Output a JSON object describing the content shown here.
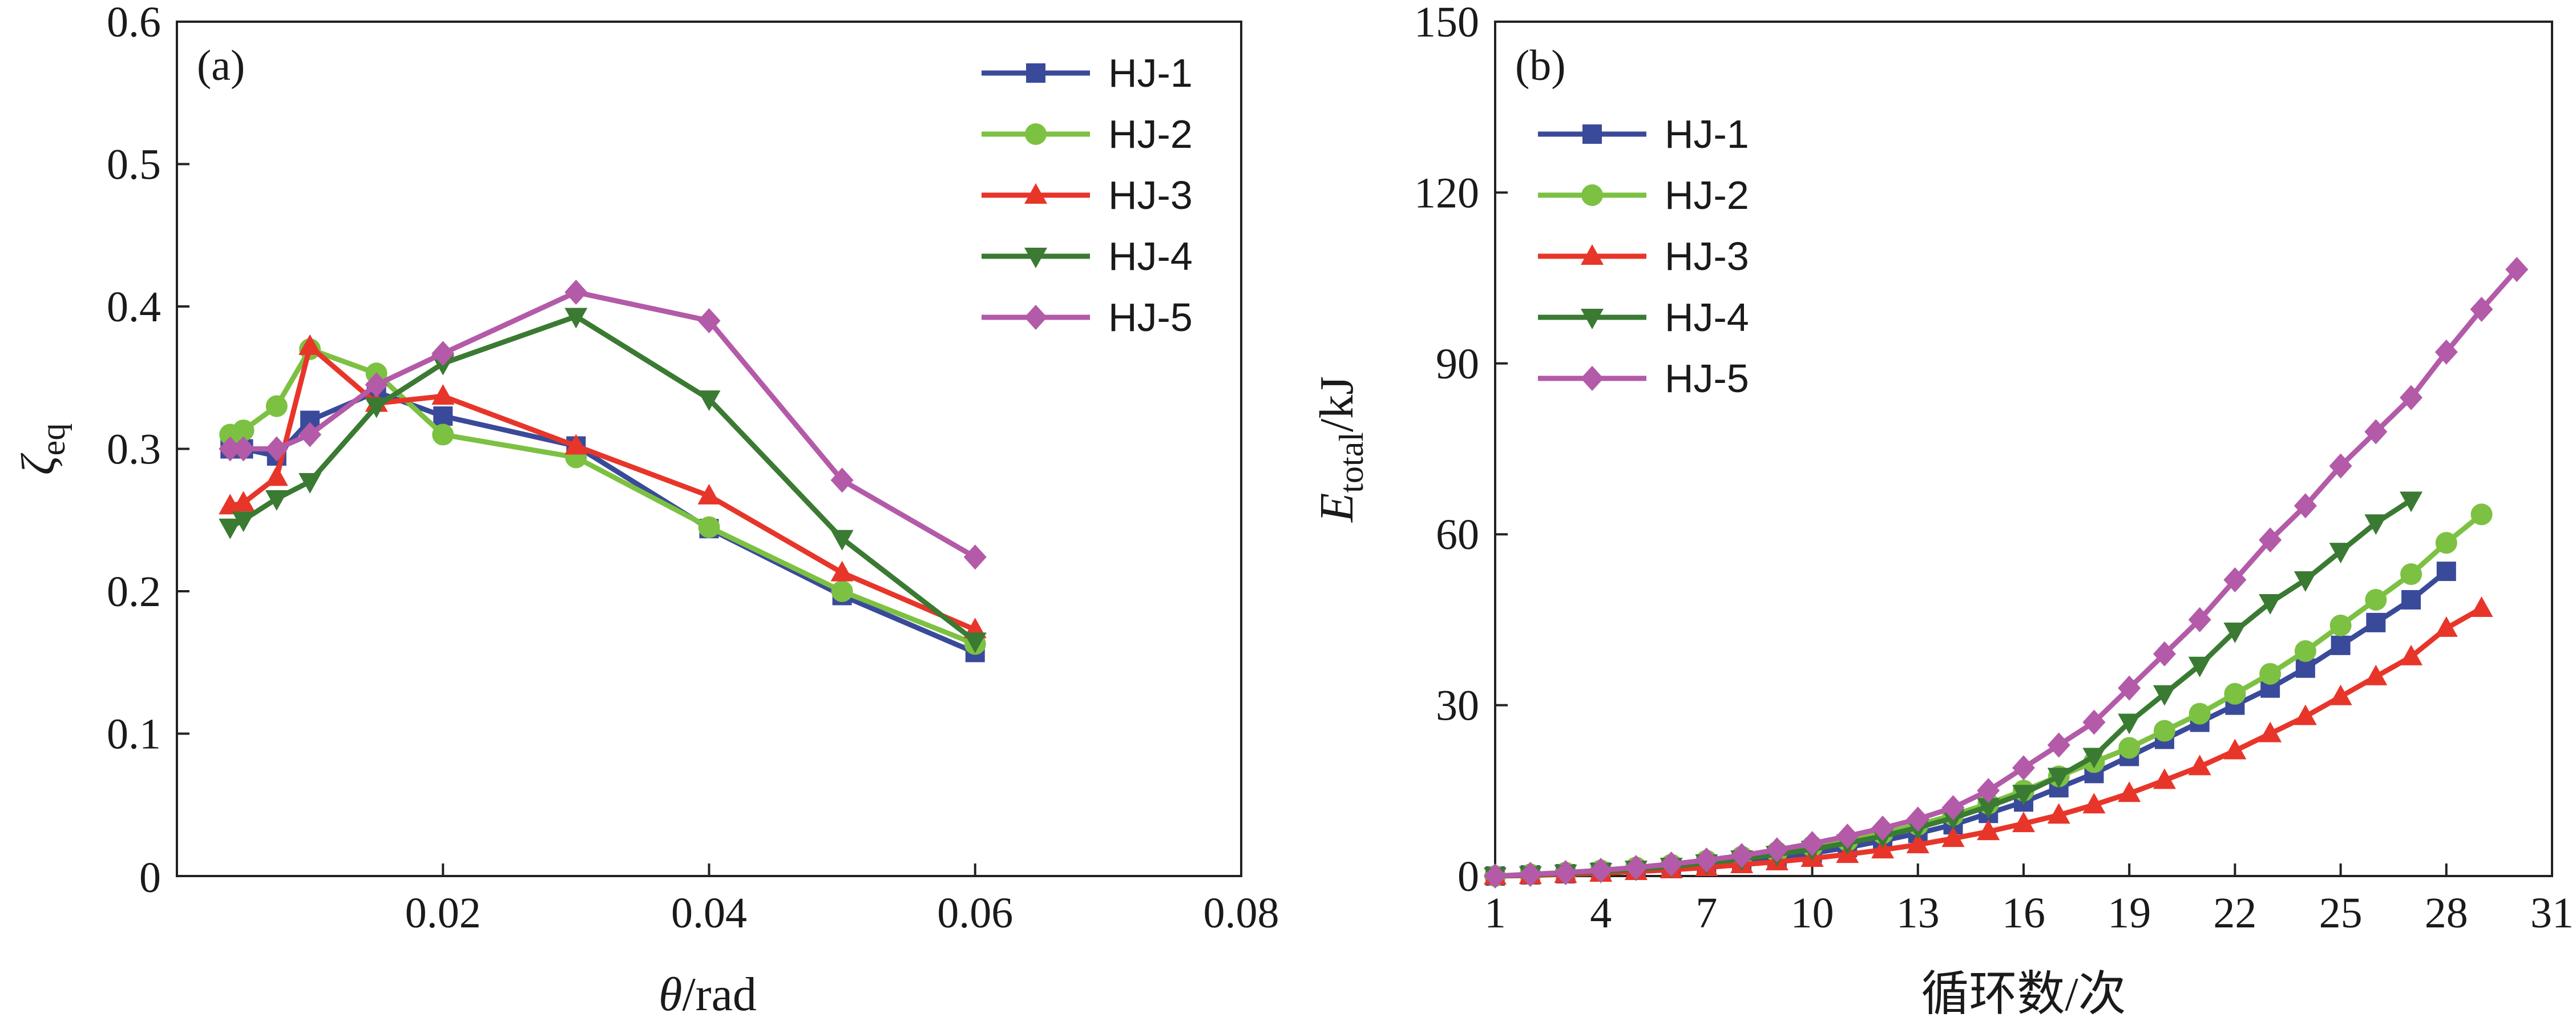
{
  "chart_data": [
    {
      "type": "line",
      "panel_label": "(a)",
      "xlabel": "θ/rad",
      "ylabel": "ζeq",
      "xlim": [
        0,
        0.08
      ],
      "ylim": [
        0,
        0.6
      ],
      "xticks": [
        0.02,
        0.04,
        0.06,
        0.08
      ],
      "xtick_labels": [
        "0.02",
        "0.04",
        "0.06",
        "0.08"
      ],
      "yticks": [
        0,
        0.1,
        0.2,
        0.3,
        0.4,
        0.5,
        0.6
      ],
      "ytick_labels": [
        "0",
        "0.1",
        "0.2",
        "0.3",
        "0.4",
        "0.5",
        "0.6"
      ],
      "legend_position": "top-right",
      "series": [
        {
          "name": "HJ-1",
          "color": "#3a4a9a",
          "marker": "square",
          "x": [
            0.004,
            0.005,
            0.0075,
            0.01,
            0.015,
            0.02,
            0.03,
            0.04,
            0.05,
            0.06
          ],
          "y": [
            0.3,
            0.3,
            0.295,
            0.32,
            0.34,
            0.323,
            0.302,
            0.244,
            0.197,
            0.157
          ]
        },
        {
          "name": "HJ-2",
          "color": "#7cc142",
          "marker": "circle",
          "x": [
            0.004,
            0.005,
            0.0075,
            0.01,
            0.015,
            0.02,
            0.03,
            0.04,
            0.05,
            0.06
          ],
          "y": [
            0.31,
            0.313,
            0.33,
            0.37,
            0.353,
            0.31,
            0.294,
            0.245,
            0.2,
            0.163
          ]
        },
        {
          "name": "HJ-3",
          "color": "#e8352a",
          "marker": "triangle-up",
          "x": [
            0.004,
            0.005,
            0.0075,
            0.01,
            0.015,
            0.02,
            0.03,
            0.04,
            0.05,
            0.06
          ],
          "y": [
            0.26,
            0.262,
            0.28,
            0.372,
            0.332,
            0.337,
            0.302,
            0.267,
            0.213,
            0.173
          ]
        },
        {
          "name": "HJ-4",
          "color": "#3a7a32",
          "marker": "triangle-down",
          "x": [
            0.004,
            0.005,
            0.0075,
            0.01,
            0.015,
            0.02,
            0.03,
            0.04,
            0.05,
            0.06
          ],
          "y": [
            0.245,
            0.25,
            0.265,
            0.277,
            0.33,
            0.36,
            0.393,
            0.335,
            0.237,
            0.165
          ]
        },
        {
          "name": "HJ-5",
          "color": "#b35aa8",
          "marker": "diamond",
          "x": [
            0.004,
            0.005,
            0.0075,
            0.01,
            0.015,
            0.02,
            0.03,
            0.04,
            0.05,
            0.06
          ],
          "y": [
            0.3,
            0.3,
            0.3,
            0.31,
            0.345,
            0.367,
            0.41,
            0.39,
            0.278,
            0.224
          ]
        }
      ]
    },
    {
      "type": "line",
      "panel_label": "(b)",
      "xlabel": "循环数/次",
      "ylabel_main": "E",
      "ylabel_sub": "total",
      "ylabel_unit": "/kJ",
      "xlim": [
        1,
        31
      ],
      "ylim": [
        0,
        150
      ],
      "xticks": [
        1,
        4,
        7,
        10,
        13,
        16,
        19,
        22,
        25,
        28,
        31
      ],
      "xtick_labels": [
        "1",
        "4",
        "7",
        "10",
        "13",
        "16",
        "19",
        "22",
        "25",
        "28",
        "31"
      ],
      "yticks": [
        0,
        30,
        60,
        90,
        120,
        150
      ],
      "ytick_labels": [
        "0",
        "30",
        "60",
        "90",
        "120",
        "150"
      ],
      "legend_position": "top-left",
      "series": [
        {
          "name": "HJ-1",
          "color": "#3a4a9a",
          "marker": "square",
          "x": [
            1,
            2,
            3,
            4,
            5,
            6,
            7,
            8,
            9,
            10,
            11,
            12,
            13,
            14,
            15,
            16,
            17,
            18,
            19,
            20,
            21,
            22,
            23,
            24,
            25,
            26,
            27,
            28
          ],
          "y": [
            0,
            0.2,
            0.4,
            0.7,
            1,
            1.4,
            1.9,
            2.5,
            3.2,
            4,
            5,
            6.2,
            7.5,
            9,
            11,
            13,
            15.5,
            18,
            21,
            24,
            27,
            30,
            33,
            36.5,
            40.5,
            44.5,
            48.5,
            53.5
          ]
        },
        {
          "name": "HJ-2",
          "color": "#7cc142",
          "marker": "circle",
          "x": [
            1,
            2,
            3,
            4,
            5,
            6,
            7,
            8,
            9,
            10,
            11,
            12,
            13,
            14,
            15,
            16,
            17,
            18,
            19,
            20,
            21,
            22,
            23,
            24,
            25,
            26,
            27,
            28,
            29
          ],
          "y": [
            0,
            0.3,
            0.6,
            1,
            1.5,
            2,
            2.7,
            3.4,
            4.2,
            5.2,
            6.2,
            7.5,
            9,
            10.7,
            12.7,
            15,
            17.5,
            20,
            22.5,
            25.5,
            28.5,
            32,
            35.5,
            39.5,
            44,
            48.5,
            53,
            58.5,
            63.5
          ]
        },
        {
          "name": "HJ-3",
          "color": "#e8352a",
          "marker": "triangle-up",
          "x": [
            1,
            2,
            3,
            4,
            5,
            6,
            7,
            8,
            9,
            10,
            11,
            12,
            13,
            14,
            15,
            16,
            17,
            18,
            19,
            20,
            21,
            22,
            23,
            24,
            25,
            26,
            27,
            28,
            29
          ],
          "y": [
            0,
            0.1,
            0.3,
            0.5,
            0.8,
            1.1,
            1.5,
            2,
            2.5,
            3.1,
            3.8,
            4.6,
            5.5,
            6.6,
            7.8,
            9.2,
            10.7,
            12.5,
            14.5,
            16.8,
            19.2,
            22,
            25,
            28,
            31.5,
            35,
            38.5,
            43.5,
            47
          ]
        },
        {
          "name": "HJ-4",
          "color": "#3a7a32",
          "marker": "triangle-down",
          "x": [
            1,
            2,
            3,
            4,
            5,
            6,
            7,
            8,
            9,
            10,
            11,
            12,
            13,
            14,
            15,
            16,
            17,
            18,
            19,
            20,
            21,
            22,
            23,
            24,
            25,
            26,
            27
          ],
          "y": [
            0,
            0.2,
            0.5,
            0.8,
            1.2,
            1.7,
            2.3,
            3,
            3.8,
            4.7,
            5.8,
            7,
            8.5,
            10.2,
            12.2,
            14.5,
            17.5,
            21,
            27,
            32,
            37,
            43,
            48,
            52,
            57,
            62,
            66
          ]
        },
        {
          "name": "HJ-5",
          "color": "#b35aa8",
          "marker": "diamond",
          "x": [
            1,
            2,
            3,
            4,
            5,
            6,
            7,
            8,
            9,
            10,
            11,
            12,
            13,
            14,
            15,
            16,
            17,
            18,
            19,
            20,
            21,
            22,
            23,
            24,
            25,
            26,
            27,
            28,
            29,
            30
          ],
          "y": [
            0,
            0.3,
            0.6,
            1,
            1.5,
            2.1,
            2.8,
            3.6,
            4.6,
            5.7,
            7,
            8.4,
            10,
            12,
            15,
            19,
            23,
            27,
            33,
            39,
            45,
            52,
            59,
            65,
            72,
            78,
            84,
            92,
            99.5,
            106.5
          ]
        }
      ]
    }
  ]
}
